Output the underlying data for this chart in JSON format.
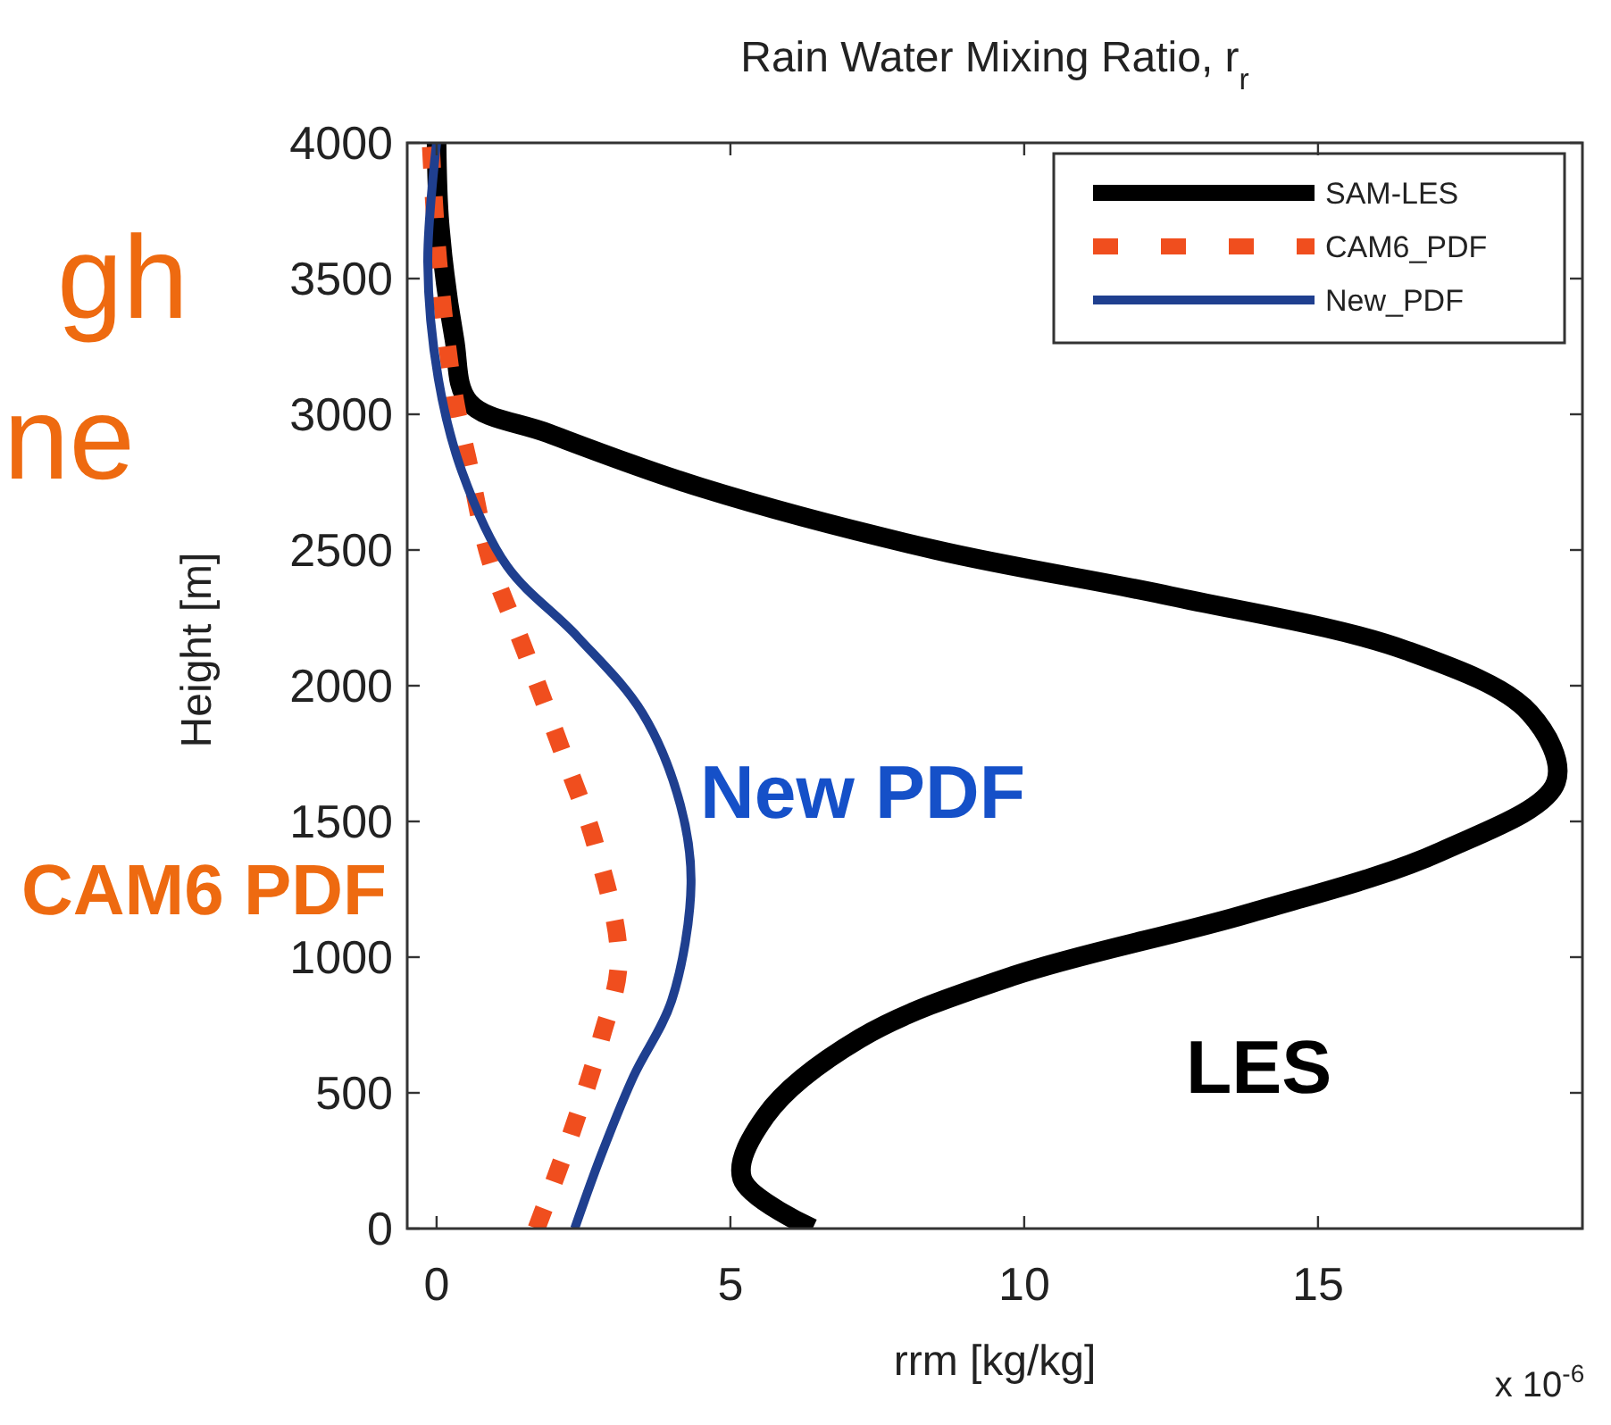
{
  "chart_data": {
    "type": "line",
    "title": "Rain Water Mixing Ratio, r$_{r}$",
    "xlabel": "rrm [kg/kg]",
    "ylabel": "Height [m]",
    "xlim": [
      -0.5,
      19.5
    ],
    "xticks": [
      0,
      5,
      10,
      15
    ],
    "ylim": [
      0,
      4000
    ],
    "yticks": [
      0,
      500,
      1000,
      1500,
      2000,
      2500,
      3000,
      3500,
      4000
    ],
    "grid": false,
    "legend": "top right",
    "annotations": [
      "gh",
      "ne",
      "New PDF",
      "CAM6 PDF",
      "LES",
      "x 10$^{-6}$"
    ],
    "series": [
      {
        "name": "SAM-LES",
        "color": "#000000",
        "line_style": "solid",
        "x": [
          6.4,
          5.2,
          5.6,
          7.2,
          9.8,
          13.8,
          17.1,
          19.05,
          18.6,
          16.5,
          12.5,
          8.5,
          4.5,
          1.9,
          0.55,
          0.3,
          0.05,
          0
        ],
        "values": [
          0,
          184,
          415,
          700,
          930,
          1160,
          1390,
          1645,
          1900,
          2130,
          2330,
          2500,
          2730,
          2930,
          3045,
          3280,
          3700,
          4000
        ]
      },
      {
        "name": "CAM6_PDF",
        "color": "#f04e1e",
        "line_style": "dashed",
        "x": [
          1.7,
          2.3,
          2.8,
          3.1,
          2.7,
          2.1,
          1.5,
          0.9,
          0.55,
          0.3,
          0.03,
          -0.1
        ],
        "values": [
          0,
          355,
          700,
          990,
          1415,
          1780,
          2130,
          2470,
          2815,
          3070,
          3560,
          4000
        ]
      },
      {
        "name": "New_PDF",
        "color": "#1f3f8f",
        "line_style": "solid",
        "x": [
          2.35,
          2.8,
          3.35,
          4.0,
          4.33,
          4.15,
          3.5,
          2.4,
          1.2,
          0.43,
          0.03,
          -0.15,
          0
        ],
        "values": [
          0,
          270,
          560,
          840,
          1270,
          1560,
          1900,
          2180,
          2440,
          2790,
          3130,
          3560,
          4000
        ]
      }
    ]
  }
}
